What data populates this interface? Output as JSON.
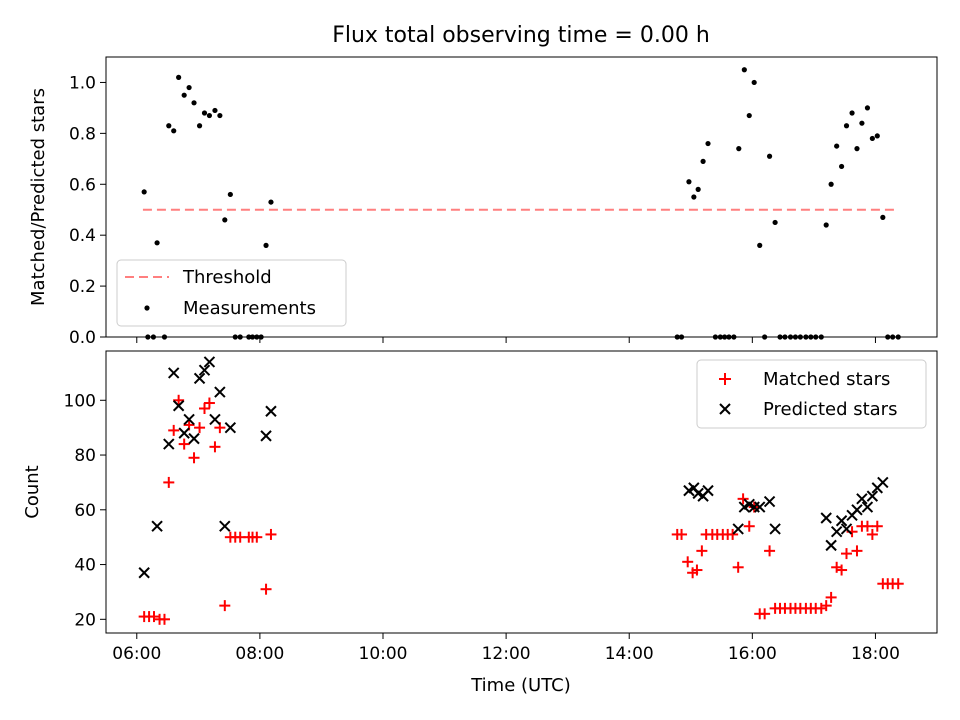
{
  "chart_data": [
    {
      "type": "scatter",
      "title": "Flux total observing time = 0.00 h",
      "xlabel": "",
      "ylabel": "Matched/Predicted stars",
      "xlim": [
        5.5,
        19.0
      ],
      "ylim": [
        0.0,
        1.1
      ],
      "y_ticks": [
        0.0,
        0.2,
        0.4,
        0.6,
        0.8,
        1.0
      ],
      "y_tick_labels": [
        "0.0",
        "0.2",
        "0.4",
        "0.6",
        "0.8",
        "1.0"
      ],
      "x_ticks": [
        6,
        8,
        10,
        12,
        14,
        16,
        18
      ],
      "legend_position": "lower-left",
      "threshold": {
        "name": "Threshold",
        "value": 0.5,
        "x_range": [
          6.1,
          18.35
        ],
        "color": "#ff7f7f",
        "style": "dashed"
      },
      "measurements": {
        "name": "Measurements",
        "color": "#000000",
        "points": [
          [
            6.12,
            0.57
          ],
          [
            6.18,
            0.0
          ],
          [
            6.27,
            0.0
          ],
          [
            6.33,
            0.37
          ],
          [
            6.45,
            0.0
          ],
          [
            6.52,
            0.83
          ],
          [
            6.6,
            0.81
          ],
          [
            6.68,
            1.02
          ],
          [
            6.77,
            0.95
          ],
          [
            6.85,
            0.98
          ],
          [
            6.93,
            0.92
          ],
          [
            7.02,
            0.83
          ],
          [
            7.1,
            0.88
          ],
          [
            7.18,
            0.87
          ],
          [
            7.27,
            0.89
          ],
          [
            7.35,
            0.87
          ],
          [
            7.43,
            0.46
          ],
          [
            7.52,
            0.56
          ],
          [
            7.6,
            0.0
          ],
          [
            7.68,
            0.0
          ],
          [
            7.82,
            0.0
          ],
          [
            7.88,
            0.0
          ],
          [
            7.95,
            0.0
          ],
          [
            8.02,
            0.0
          ],
          [
            8.1,
            0.36
          ],
          [
            8.18,
            0.53
          ],
          [
            14.78,
            0.0
          ],
          [
            14.85,
            0.0
          ],
          [
            14.97,
            0.61
          ],
          [
            15.05,
            0.55
          ],
          [
            15.12,
            0.58
          ],
          [
            15.2,
            0.69
          ],
          [
            15.28,
            0.76
          ],
          [
            15.4,
            0.0
          ],
          [
            15.48,
            0.0
          ],
          [
            15.55,
            0.0
          ],
          [
            15.62,
            0.0
          ],
          [
            15.7,
            0.0
          ],
          [
            15.78,
            0.74
          ],
          [
            15.87,
            1.05
          ],
          [
            15.95,
            0.87
          ],
          [
            16.03,
            1.0
          ],
          [
            16.12,
            0.36
          ],
          [
            16.2,
            0.0
          ],
          [
            16.28,
            0.71
          ],
          [
            16.37,
            0.45
          ],
          [
            16.45,
            0.0
          ],
          [
            16.53,
            0.0
          ],
          [
            16.62,
            0.0
          ],
          [
            16.7,
            0.0
          ],
          [
            16.78,
            0.0
          ],
          [
            16.87,
            0.0
          ],
          [
            16.95,
            0.0
          ],
          [
            17.03,
            0.0
          ],
          [
            17.12,
            0.0
          ],
          [
            17.2,
            0.44
          ],
          [
            17.28,
            0.6
          ],
          [
            17.37,
            0.75
          ],
          [
            17.45,
            0.67
          ],
          [
            17.53,
            0.83
          ],
          [
            17.62,
            0.88
          ],
          [
            17.7,
            0.74
          ],
          [
            17.78,
            0.84
          ],
          [
            17.87,
            0.9
          ],
          [
            17.95,
            0.78
          ],
          [
            18.03,
            0.79
          ],
          [
            18.12,
            0.47
          ],
          [
            18.2,
            0.0
          ],
          [
            18.28,
            0.0
          ],
          [
            18.37,
            0.0
          ]
        ]
      }
    },
    {
      "type": "scatter",
      "title": "",
      "xlabel": "Time (UTC)",
      "ylabel": "Count",
      "xlim": [
        5.5,
        19.0
      ],
      "ylim": [
        15,
        118
      ],
      "y_ticks": [
        20,
        40,
        60,
        80,
        100
      ],
      "y_tick_labels": [
        "20",
        "40",
        "60",
        "80",
        "100"
      ],
      "x_ticks": [
        6,
        8,
        10,
        12,
        14,
        16,
        18
      ],
      "x_tick_labels": [
        "06:00",
        "08:00",
        "10:00",
        "12:00",
        "14:00",
        "16:00",
        "18:00"
      ],
      "legend_position": "upper-right",
      "series": [
        {
          "name": "Matched stars",
          "marker": "+",
          "color": "#ff0000",
          "points": [
            [
              6.12,
              21
            ],
            [
              6.2,
              21
            ],
            [
              6.28,
              21
            ],
            [
              6.37,
              20
            ],
            [
              6.45,
              20
            ],
            [
              6.52,
              70
            ],
            [
              6.6,
              89
            ],
            [
              6.68,
              100
            ],
            [
              6.77,
              84
            ],
            [
              6.85,
              91
            ],
            [
              6.93,
              79
            ],
            [
              7.02,
              90
            ],
            [
              7.1,
              97
            ],
            [
              7.18,
              99
            ],
            [
              7.27,
              83
            ],
            [
              7.35,
              90
            ],
            [
              7.43,
              25
            ],
            [
              7.52,
              50
            ],
            [
              7.6,
              50
            ],
            [
              7.68,
              50
            ],
            [
              7.82,
              50
            ],
            [
              7.88,
              50
            ],
            [
              7.95,
              50
            ],
            [
              8.1,
              31
            ],
            [
              8.18,
              51
            ],
            [
              14.78,
              51
            ],
            [
              14.85,
              51
            ],
            [
              14.95,
              41
            ],
            [
              15.03,
              37
            ],
            [
              15.1,
              38
            ],
            [
              15.18,
              45
            ],
            [
              15.25,
              51
            ],
            [
              15.35,
              51
            ],
            [
              15.43,
              51
            ],
            [
              15.52,
              51
            ],
            [
              15.6,
              51
            ],
            [
              15.68,
              51
            ],
            [
              15.77,
              39
            ],
            [
              15.85,
              64
            ],
            [
              15.95,
              54
            ],
            [
              16.03,
              61
            ],
            [
              16.12,
              22
            ],
            [
              16.2,
              22
            ],
            [
              16.28,
              45
            ],
            [
              16.37,
              24
            ],
            [
              16.45,
              24
            ],
            [
              16.53,
              24
            ],
            [
              16.62,
              24
            ],
            [
              16.7,
              24
            ],
            [
              16.78,
              24
            ],
            [
              16.87,
              24
            ],
            [
              16.95,
              24
            ],
            [
              17.03,
              24
            ],
            [
              17.12,
              24
            ],
            [
              17.2,
              25
            ],
            [
              17.28,
              28
            ],
            [
              17.37,
              39
            ],
            [
              17.45,
              38
            ],
            [
              17.53,
              44
            ],
            [
              17.62,
              52
            ],
            [
              17.7,
              45
            ],
            [
              17.78,
              54
            ],
            [
              17.87,
              54
            ],
            [
              17.95,
              51
            ],
            [
              18.03,
              54
            ],
            [
              18.12,
              33
            ],
            [
              18.2,
              33
            ],
            [
              18.28,
              33
            ],
            [
              18.37,
              33
            ]
          ]
        },
        {
          "name": "Predicted stars",
          "marker": "x",
          "color": "#000000",
          "points": [
            [
              6.12,
              37
            ],
            [
              6.33,
              54
            ],
            [
              6.52,
              84
            ],
            [
              6.6,
              110
            ],
            [
              6.68,
              98
            ],
            [
              6.77,
              88
            ],
            [
              6.85,
              93
            ],
            [
              6.93,
              86
            ],
            [
              7.02,
              108
            ],
            [
              7.1,
              111
            ],
            [
              7.18,
              114
            ],
            [
              7.27,
              93
            ],
            [
              7.35,
              103
            ],
            [
              7.43,
              54
            ],
            [
              7.52,
              90
            ],
            [
              8.1,
              87
            ],
            [
              8.18,
              96
            ],
            [
              14.97,
              67
            ],
            [
              15.05,
              68
            ],
            [
              15.12,
              66
            ],
            [
              15.2,
              65
            ],
            [
              15.28,
              67
            ],
            [
              15.77,
              53
            ],
            [
              15.87,
              61
            ],
            [
              15.95,
              62
            ],
            [
              16.03,
              61
            ],
            [
              16.12,
              61
            ],
            [
              16.28,
              63
            ],
            [
              16.37,
              53
            ],
            [
              17.2,
              57
            ],
            [
              17.28,
              47
            ],
            [
              17.37,
              52
            ],
            [
              17.45,
              56
            ],
            [
              17.53,
              53
            ],
            [
              17.62,
              58
            ],
            [
              17.7,
              60
            ],
            [
              17.78,
              64
            ],
            [
              17.87,
              61
            ],
            [
              17.95,
              65
            ],
            [
              18.03,
              68
            ],
            [
              18.12,
              70
            ]
          ]
        }
      ]
    }
  ]
}
